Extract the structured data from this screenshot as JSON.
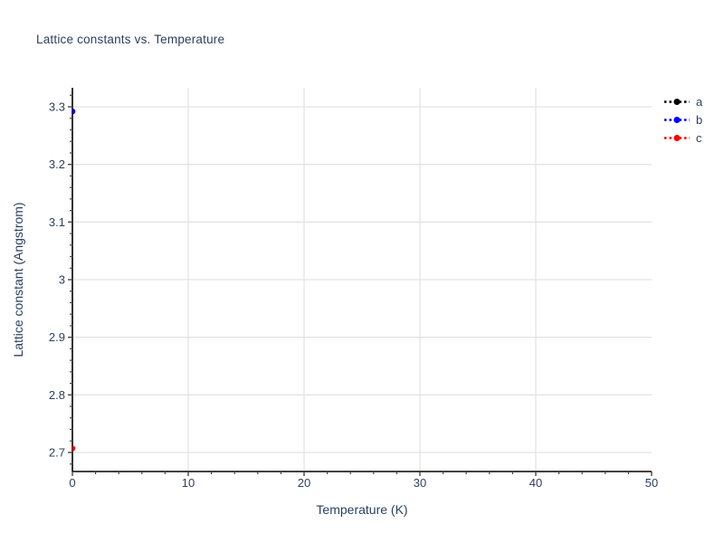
{
  "colors": {
    "text": "#2a3f5f",
    "grid": "#e3e3e3",
    "axis": "#000000",
    "tick": "#444444",
    "background": "#ffffff"
  },
  "chart_data": {
    "type": "scatter",
    "title": "Lattice constants vs. Temperature",
    "xlabel": "Temperature (K)",
    "ylabel": "Lattice constant (Angstrom)",
    "xlim": [
      0,
      50
    ],
    "ylim": [
      2.667,
      3.333
    ],
    "x_tick_values": [
      0,
      10,
      20,
      30,
      40,
      50
    ],
    "x_tick_labels": [
      "0",
      "10",
      "20",
      "30",
      "40",
      "50"
    ],
    "x_minor_step": 2,
    "y_tick_values": [
      2.7,
      2.8,
      2.9,
      3.0,
      3.1,
      3.2,
      3.3
    ],
    "y_tick_labels": [
      "2.7",
      "2.8",
      "2.9",
      "3",
      "3.1",
      "3.2",
      "3.3"
    ],
    "y_minor_step": 0.02,
    "grid": true,
    "legend_position": "top-right",
    "marker": "circle",
    "line_style": "dotted",
    "series": [
      {
        "name": "a",
        "color": "#000000",
        "x": [
          0
        ],
        "y": [
          3.292
        ]
      },
      {
        "name": "b",
        "color": "#0000ff",
        "x": [
          0
        ],
        "y": [
          3.292
        ]
      },
      {
        "name": "c",
        "color": "#ff0000",
        "x": [
          0
        ],
        "y": [
          2.707
        ]
      }
    ]
  }
}
